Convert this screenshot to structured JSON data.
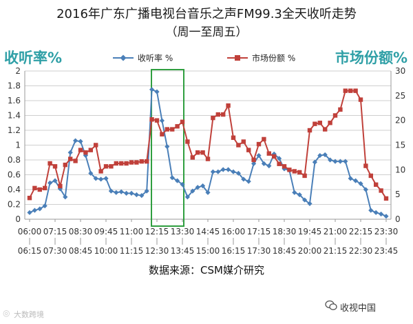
{
  "title": "2016年广东广播电视台音乐之声FM99.3全天收听走势",
  "subtitle": "（周一至周五）",
  "source": "数据来源：CSM媒介研究",
  "watermark_right": "收视中国",
  "watermark_left": "大数跨境",
  "chart_data": {
    "type": "line",
    "legend_position": "top-center",
    "grid": true,
    "left_axis": {
      "label": "收听率%",
      "ylim": [
        0,
        2
      ],
      "ticks": [
        "0",
        "0.2",
        "0.4",
        "0.6",
        "0.8",
        "1",
        "1.2",
        "1.4",
        "1.6",
        "1.8",
        "2"
      ]
    },
    "right_axis": {
      "label": "市场份额%",
      "ylim": [
        0,
        30
      ],
      "ticks": [
        "0",
        "5",
        "10",
        "15",
        "20",
        "25",
        "30"
      ]
    },
    "x_labels_row1": [
      "06:00",
      "07:15",
      "08:30",
      "09:45",
      "11:00",
      "12:15",
      "13:30",
      "14:45",
      "16:00",
      "17:15",
      "18:30",
      "19:45",
      "21:00",
      "22:15",
      "23:30"
    ],
    "x_labels_row2": [
      "06:15",
      "07:30",
      "08:45",
      "10:00",
      "11:15",
      "12:30",
      "13:45",
      "15:00",
      "16:15",
      "17:30",
      "18:45",
      "20:00",
      "21:15",
      "22:30",
      "23:45"
    ],
    "series": [
      {
        "name": "收听率 %",
        "axis": "left",
        "color": "#4a7fb8",
        "marker": "diamond",
        "values": [
          0.09,
          0.12,
          0.14,
          0.18,
          0.49,
          0.52,
          0.41,
          0.3,
          0.9,
          1.06,
          1.05,
          0.86,
          0.62,
          0.55,
          0.54,
          0.55,
          0.38,
          0.36,
          0.37,
          0.35,
          0.35,
          0.33,
          0.32,
          0.38,
          1.75,
          1.72,
          1.33,
          0.98,
          0.56,
          0.52,
          0.47,
          0.3,
          0.38,
          0.43,
          0.45,
          0.36,
          0.64,
          0.64,
          0.67,
          0.67,
          0.64,
          0.62,
          0.54,
          0.51,
          0.75,
          0.86,
          0.75,
          0.72,
          0.88,
          0.82,
          0.68,
          0.66,
          0.36,
          0.33,
          0.26,
          0.21,
          0.77,
          0.86,
          0.87,
          0.8,
          0.78,
          0.78,
          0.78,
          0.55,
          0.52,
          0.48,
          0.4,
          0.12,
          0.09,
          0.07,
          0.04
        ]
      },
      {
        "name": "市场份额 %",
        "axis": "right",
        "color": "#c0403a",
        "marker": "square",
        "values": [
          4.3,
          6.3,
          6.0,
          6.3,
          11.3,
          10.7,
          6.7,
          11.0,
          12.2,
          11.8,
          14.0,
          13.5,
          14.0,
          15.0,
          9.7,
          10.7,
          10.7,
          11.3,
          11.3,
          11.3,
          11.5,
          11.5,
          11.7,
          11.7,
          20.2,
          20.0,
          17.2,
          18.2,
          18.2,
          18.8,
          19.7,
          15.7,
          12.5,
          13.5,
          13.5,
          12.2,
          20.5,
          21.2,
          21.2,
          23.0,
          16.5,
          15.0,
          15.7,
          14.0,
          12.0,
          15.2,
          16.2,
          13.3,
          12.7,
          11.2,
          10.7,
          10.0,
          9.7,
          9.5,
          8.8,
          18.0,
          19.3,
          19.5,
          18.2,
          19.5,
          21.0,
          22.2,
          26.0,
          26.0,
          26.0,
          24.2,
          10.8,
          8.8,
          7.0,
          5.8,
          4.2
        ]
      }
    ],
    "highlight_box": {
      "x_start_index": 25,
      "x_end_index": 30,
      "color": "#2f9e3f"
    }
  }
}
